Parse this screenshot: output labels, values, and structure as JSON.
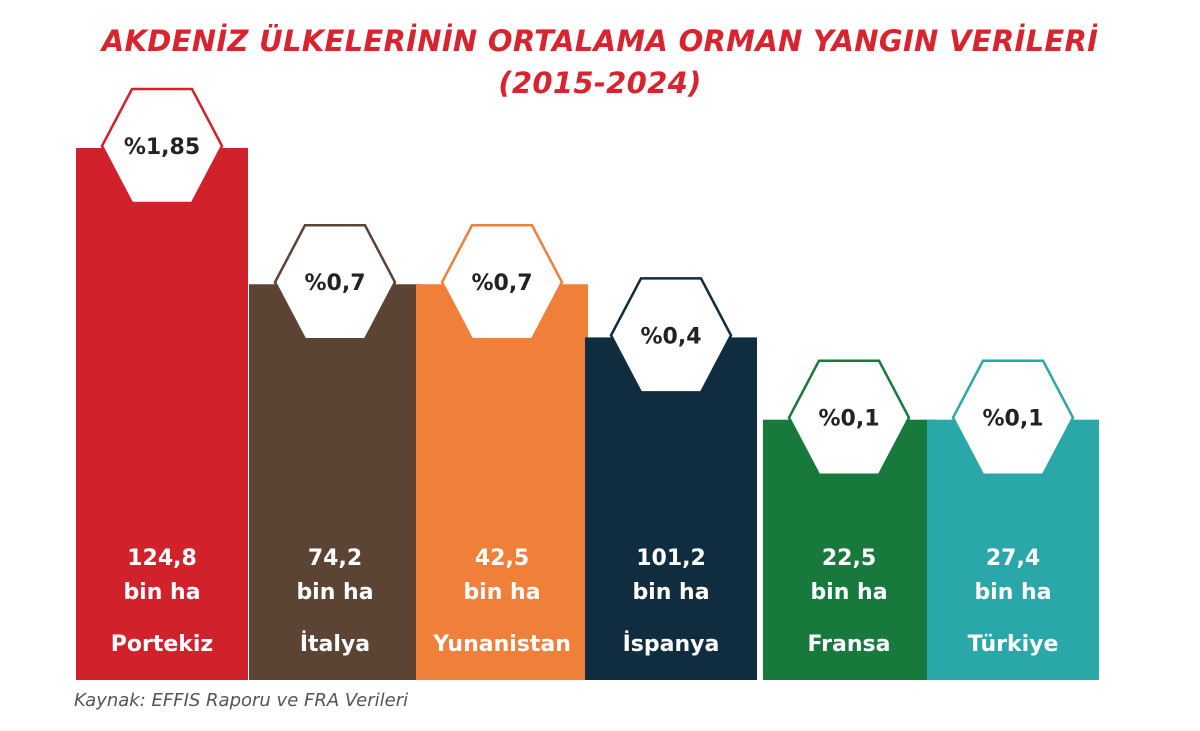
{
  "chart_data": {
    "type": "bar",
    "title_line1": "AKDENİZ ÜLKELERİNİN ORTALAMA ORMAN YANGIN VERİLERİ",
    "title_line2": "(2015-2024)",
    "unit": "bin ha",
    "categories": [
      "Portekiz",
      "İtalya",
      "Yunanistan",
      "İspanya",
      "Fransa",
      "Türkiye"
    ],
    "values": [
      124.8,
      74.2,
      42.5,
      101.2,
      22.5,
      27.4
    ],
    "value_labels": [
      "124,8",
      "74,2",
      "42,5",
      "101,2",
      "22,5",
      "27,4"
    ],
    "percent_labels": [
      "%1,85",
      "%0,7",
      "%0,7",
      "%0,4",
      "%0,1",
      "%0,1"
    ],
    "percent_values": [
      1.85,
      0.7,
      0.7,
      0.4,
      0.1,
      0.1
    ],
    "colors": [
      "#d1222b",
      "#5c4435",
      "#f07f3a",
      "#0f2d3f",
      "#17793b",
      "#2aa7a9"
    ],
    "source": "Kaynak: EFFIS Raporu ve FRA Verileri"
  }
}
